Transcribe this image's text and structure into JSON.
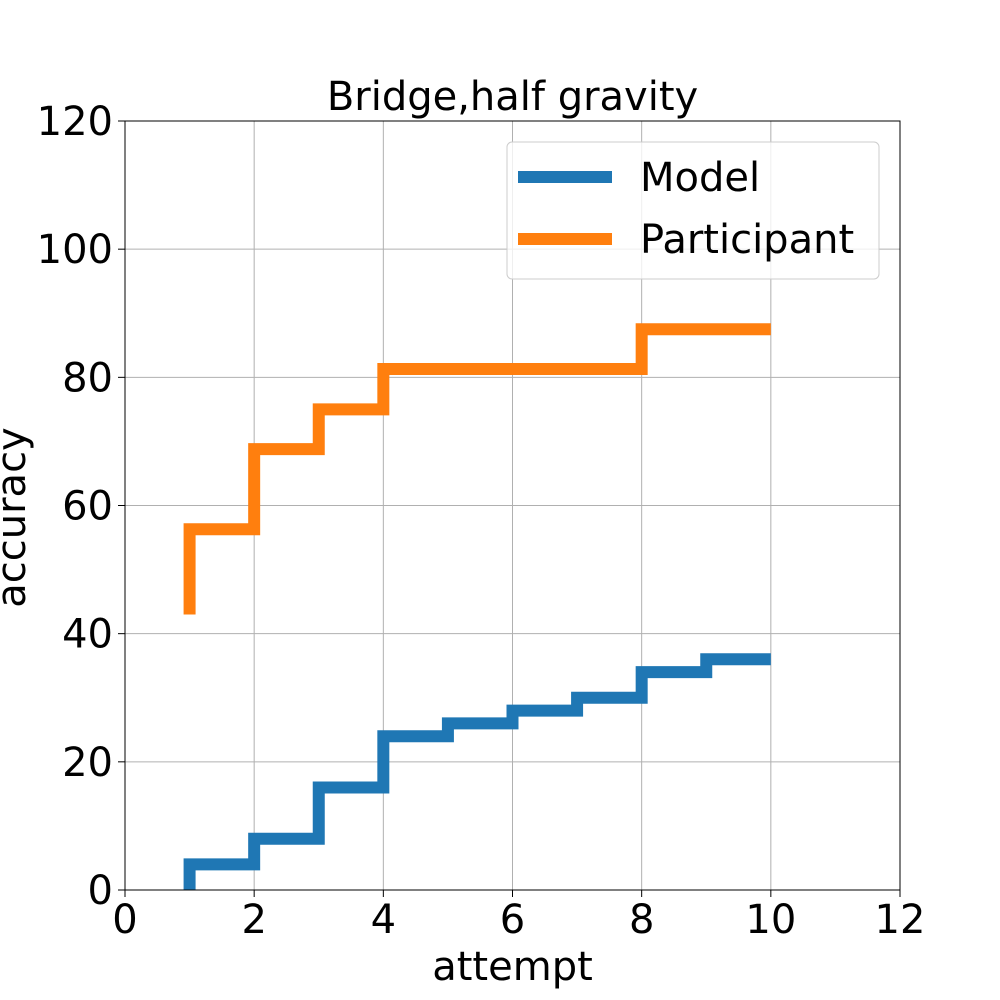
{
  "chart_data": {
    "type": "line",
    "step": "post",
    "title": "Bridge,half gravity",
    "xlabel": "attempt",
    "ylabel": "accuracy",
    "xlim": [
      0,
      12
    ],
    "ylim": [
      0,
      120
    ],
    "xticks": [
      0,
      2,
      4,
      6,
      8,
      10,
      12
    ],
    "yticks": [
      0,
      20,
      40,
      60,
      80,
      100,
      120
    ],
    "grid": true,
    "legend_position": "top-right",
    "series": [
      {
        "name": "Model",
        "color": "#1f77b4",
        "x": [
          1,
          1,
          2,
          3,
          4,
          5,
          6,
          7,
          8,
          9,
          10
        ],
        "y": [
          0,
          4,
          8,
          16,
          24,
          26,
          28,
          30,
          34,
          36,
          36
        ]
      },
      {
        "name": "Participant",
        "color": "#ff7f0e",
        "x": [
          1,
          1,
          2,
          3,
          4,
          5,
          6,
          7,
          8,
          9,
          10
        ],
        "y": [
          43,
          56.3,
          68.8,
          75,
          81.3,
          81.3,
          81.3,
          81.3,
          87.5,
          87.5,
          87.5
        ]
      }
    ]
  }
}
